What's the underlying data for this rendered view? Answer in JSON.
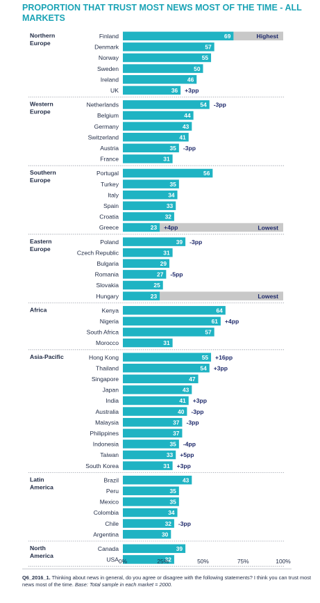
{
  "chart_data": {
    "type": "bar",
    "orientation": "horizontal",
    "title": "PROPORTION THAT TRUST MOST NEWS MOST OF THE TIME - ALL MARKETS",
    "xlim": [
      0,
      100
    ],
    "x_ticks": [
      "0%",
      "25%",
      "50%",
      "75%",
      "100%"
    ],
    "colors": {
      "bar": "#1fb3c3",
      "highlight_band": "#c8c8c8",
      "title": "#1aa3b5",
      "text": "#1f2a44",
      "change": "#1f2a6b"
    },
    "groups": [
      {
        "name": "Northern Europe",
        "rows": [
          {
            "country": "Finland",
            "value": 69,
            "highlight": "Highest"
          },
          {
            "country": "Denmark",
            "value": 57
          },
          {
            "country": "Norway",
            "value": 55
          },
          {
            "country": "Sweden",
            "value": 50
          },
          {
            "country": "Ireland",
            "value": 46
          },
          {
            "country": "UK",
            "value": 36,
            "change": "+3pp"
          }
        ]
      },
      {
        "name": "Western Europe",
        "rows": [
          {
            "country": "Netherlands",
            "value": 54,
            "change": "-3pp"
          },
          {
            "country": "Belgium",
            "value": 44
          },
          {
            "country": "Germany",
            "value": 43
          },
          {
            "country": "Switzerland",
            "value": 41
          },
          {
            "country": "Austria",
            "value": 35,
            "change": "-3pp"
          },
          {
            "country": "France",
            "value": 31
          }
        ]
      },
      {
        "name": "Southern Europe",
        "rows": [
          {
            "country": "Portugal",
            "value": 56
          },
          {
            "country": "Turkey",
            "value": 35
          },
          {
            "country": "Italy",
            "value": 34
          },
          {
            "country": "Spain",
            "value": 33
          },
          {
            "country": "Croatia",
            "value": 32
          },
          {
            "country": "Greece",
            "value": 23,
            "change": "+4pp",
            "highlight": "Lowest"
          }
        ]
      },
      {
        "name": "Eastern Europe",
        "rows": [
          {
            "country": "Poland",
            "value": 39,
            "change": "-3pp"
          },
          {
            "country": "Czech Republic",
            "value": 31
          },
          {
            "country": "Bulgaria",
            "value": 29
          },
          {
            "country": "Romania",
            "value": 27,
            "change": "-5pp"
          },
          {
            "country": "Slovakia",
            "value": 25
          },
          {
            "country": "Hungary",
            "value": 23,
            "highlight": "Lowest"
          }
        ]
      },
      {
        "name": "Africa",
        "rows": [
          {
            "country": "Kenya",
            "value": 64
          },
          {
            "country": "Nigeria",
            "value": 61,
            "change": "+4pp"
          },
          {
            "country": "South Africa",
            "value": 57
          },
          {
            "country": "Morocco",
            "value": 31
          }
        ]
      },
      {
        "name": "Asia-Pacific",
        "rows": [
          {
            "country": "Hong Kong",
            "value": 55,
            "change": "+16pp"
          },
          {
            "country": "Thailand",
            "value": 54,
            "change": "+3pp"
          },
          {
            "country": "Singapore",
            "value": 47
          },
          {
            "country": "Japan",
            "value": 43
          },
          {
            "country": "India",
            "value": 41,
            "change": "+3pp"
          },
          {
            "country": "Australia",
            "value": 40,
            "change": "-3pp"
          },
          {
            "country": "Malaysia",
            "value": 37,
            "change": "-3pp"
          },
          {
            "country": "Philippines",
            "value": 37
          },
          {
            "country": "Indonesia",
            "value": 35,
            "change": "-4pp"
          },
          {
            "country": "Taiwan",
            "value": 33,
            "change": "+5pp"
          },
          {
            "country": "South Korea",
            "value": 31,
            "change": "+3pp"
          }
        ]
      },
      {
        "name": "Latin America",
        "rows": [
          {
            "country": "Brazil",
            "value": 43
          },
          {
            "country": "Peru",
            "value": 35
          },
          {
            "country": "Mexico",
            "value": 35
          },
          {
            "country": "Colombia",
            "value": 34
          },
          {
            "country": "Chile",
            "value": 32,
            "change": "-3pp"
          },
          {
            "country": "Argentina",
            "value": 30
          }
        ]
      },
      {
        "name": "North America",
        "rows": [
          {
            "country": "Canada",
            "value": 39
          },
          {
            "country": "USA",
            "value": 32
          }
        ]
      }
    ]
  },
  "footnote": {
    "code": "Q6_2016_1.",
    "question": " Thinking about news in general, do you agree or disagree with the following statements? I think you can trust most news most of the time. ",
    "base": "Base: Total sample in each market = 2000."
  }
}
